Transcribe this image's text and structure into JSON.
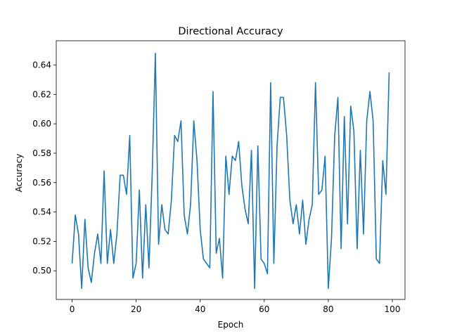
{
  "chart_data": {
    "type": "line",
    "title": "Directional Accuracy",
    "xlabel": "Epoch",
    "ylabel": "Accuracy",
    "xlim": [
      -4.95,
      103.95
    ],
    "ylim": [
      0.4805,
      0.6565
    ],
    "xticks": [
      0,
      20,
      40,
      60,
      80,
      100
    ],
    "yticks": [
      0.5,
      0.52,
      0.54,
      0.56,
      0.58,
      0.6,
      0.62,
      0.64
    ],
    "xtick_labels": [
      "0",
      "20",
      "40",
      "60",
      "80",
      "100"
    ],
    "ytick_labels": [
      "0.50",
      "0.52",
      "0.54",
      "0.56",
      "0.58",
      "0.60",
      "0.62",
      "0.64"
    ],
    "grid": false,
    "line_color": "#1f77b4",
    "series": [
      {
        "x": [
          0,
          1,
          2,
          3,
          4,
          5,
          6,
          7,
          8,
          9,
          10,
          11,
          12,
          13,
          14,
          15,
          16,
          17,
          18,
          19,
          20,
          21,
          22,
          23,
          24,
          25,
          26,
          27,
          28,
          29,
          30,
          31,
          32,
          33,
          34,
          35,
          36,
          37,
          38,
          39,
          40,
          41,
          42,
          43,
          44,
          45,
          46,
          47,
          48,
          49,
          50,
          51,
          52,
          53,
          54,
          55,
          56,
          57,
          58,
          59,
          60,
          61,
          62,
          63,
          64,
          65,
          66,
          67,
          68,
          69,
          70,
          71,
          72,
          73,
          74,
          75,
          76,
          77,
          78,
          79,
          80,
          81,
          82,
          83,
          84,
          85,
          86,
          87,
          88,
          89,
          90,
          91,
          92,
          93,
          94,
          95,
          96,
          97,
          98,
          99
        ],
        "values": [
          0.505,
          0.538,
          0.525,
          0.488,
          0.535,
          0.502,
          0.492,
          0.512,
          0.525,
          0.505,
          0.568,
          0.505,
          0.528,
          0.505,
          0.525,
          0.565,
          0.565,
          0.552,
          0.592,
          0.495,
          0.505,
          0.555,
          0.495,
          0.545,
          0.502,
          0.565,
          0.648,
          0.518,
          0.545,
          0.528,
          0.525,
          0.548,
          0.592,
          0.588,
          0.602,
          0.538,
          0.525,
          0.545,
          0.602,
          0.575,
          0.528,
          0.508,
          0.505,
          0.502,
          0.622,
          0.512,
          0.522,
          0.495,
          0.578,
          0.552,
          0.578,
          0.575,
          0.588,
          0.558,
          0.542,
          0.532,
          0.582,
          0.488,
          0.585,
          0.508,
          0.505,
          0.498,
          0.628,
          0.505,
          0.585,
          0.618,
          0.618,
          0.592,
          0.548,
          0.532,
          0.545,
          0.525,
          0.548,
          0.518,
          0.535,
          0.545,
          0.628,
          0.552,
          0.555,
          0.578,
          0.488,
          0.522,
          0.592,
          0.618,
          0.515,
          0.605,
          0.532,
          0.612,
          0.595,
          0.515,
          0.582,
          0.525,
          0.602,
          0.622,
          0.602,
          0.508,
          0.505,
          0.575,
          0.552,
          0.635
        ]
      }
    ]
  }
}
